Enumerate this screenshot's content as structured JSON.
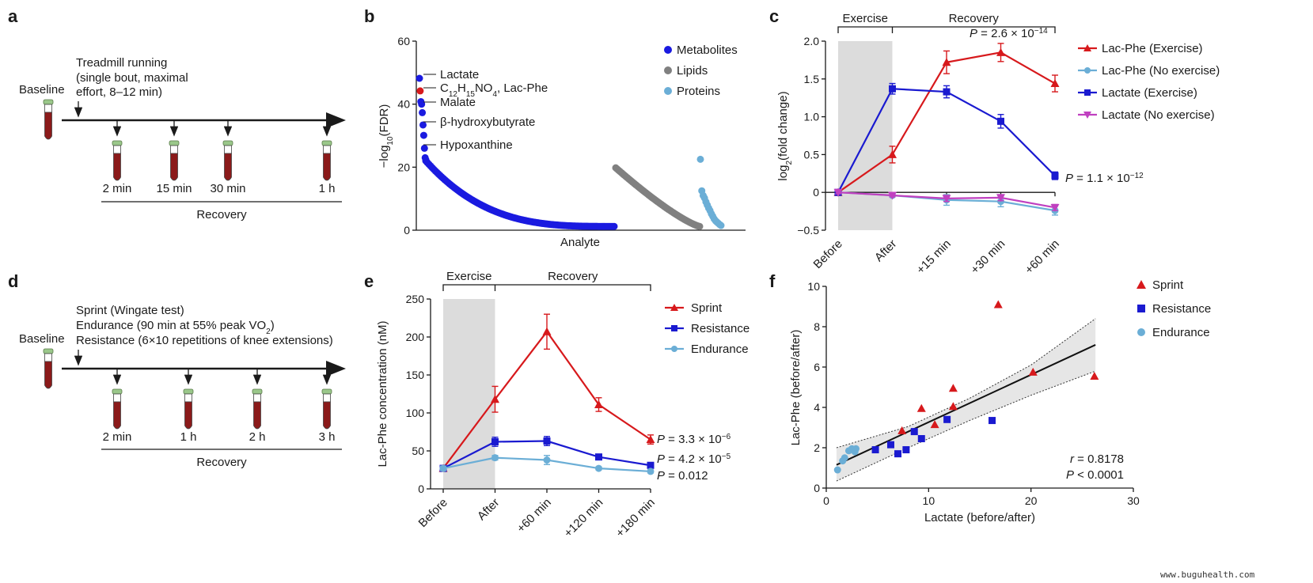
{
  "colors": {
    "red": "#d7191c",
    "blue": "#1a1ad0",
    "lightblue": "#6baed6",
    "magenta": "#c040c0",
    "grey": "#808080",
    "metab": "#1a1ae0",
    "shade": "#dcdcdc",
    "tube_cap": "#9ac78a",
    "tube_body": "#8b1a1a"
  },
  "panel_a": {
    "label": "a",
    "baseline": "Baseline",
    "event": [
      "Treadmill running",
      "(single bout, maximal",
      "effort, 8–12 min)"
    ],
    "timepoints": [
      "2 min",
      "15 min",
      "30 min",
      "1 h"
    ],
    "recovery": "Recovery"
  },
  "panel_d": {
    "label": "d",
    "baseline": "Baseline",
    "events": [
      "Sprint (Wingate test)",
      "Endurance (90 min at 55% peak VO",
      "2",
      ")",
      "Resistance (6×10 repetitions of knee extensions)"
    ],
    "timepoints": [
      "2 min",
      "1 h",
      "2 h",
      "3 h"
    ],
    "recovery": "Recovery"
  },
  "chart_data": [
    {
      "panel": "b",
      "type": "scatter",
      "ylabel_parts": [
        "−log",
        "10",
        "(FDR)"
      ],
      "xlabel": "Analyte",
      "ylim": [
        0,
        60
      ],
      "yticks": [
        0,
        20,
        40,
        60
      ],
      "legend": [
        {
          "name": "Metabolites",
          "color": "#1a1ae0"
        },
        {
          "name": "Lipids",
          "color": "#808080"
        },
        {
          "name": "Proteins",
          "color": "#6baed6"
        }
      ],
      "series": [
        {
          "name": "Metabolites",
          "top_values": [
            48.2,
            44.2,
            40.8,
            40.0,
            37.3,
            33.4,
            30.1,
            26.0,
            23.0,
            22.3
          ],
          "tail_start": 22,
          "tail_end": 1.2,
          "tail_count": 120
        },
        {
          "name": "Lipids",
          "tail_start": 19.8,
          "tail_end": 1.2,
          "tail_count": 60
        },
        {
          "name": "Proteins",
          "values": [
            22.5,
            12.5,
            11.0,
            10.2,
            9.0,
            8.0,
            7.0,
            6.2,
            5.2,
            4.4,
            3.6,
            3.0,
            2.6,
            2.2,
            1.8,
            1.5
          ]
        }
      ],
      "annotations": [
        {
          "text": "Lactate",
          "y": 48.2
        },
        {
          "text": "Lac-Phe",
          "y": 44.2,
          "formula": [
            "C",
            "12",
            "H",
            "15",
            "NO",
            "4"
          ]
        },
        {
          "text": "Malate",
          "y": 40.0
        },
        {
          "text": "β-hydroxybutyrate",
          "y": 33.4
        },
        {
          "text": "Hypoxanthine",
          "y": 26.0
        }
      ]
    },
    {
      "panel": "c",
      "type": "line",
      "categories": [
        "Before",
        "After",
        "+15 min",
        "+30 min",
        "+60 min"
      ],
      "ylabel_parts": [
        "log",
        "2",
        "(fold change)"
      ],
      "ylim": [
        -0.5,
        2.0
      ],
      "yticks": [
        -0.5,
        0,
        0.5,
        1.0,
        1.5,
        2.0
      ],
      "ytick_labels": [
        "−0.5",
        "0",
        "0.5",
        "1.0",
        "1.5",
        "2.0"
      ],
      "shade_label": "Exercise",
      "recovery_label": "Recovery",
      "series": [
        {
          "name": "Lac-Phe (Exercise)",
          "color": "#d7191c",
          "marker": "triangle",
          "values": [
            0,
            0.5,
            1.72,
            1.85,
            1.44
          ],
          "err": [
            0.02,
            0.11,
            0.15,
            0.12,
            0.11
          ]
        },
        {
          "name": "Lac-Phe (No exercise)",
          "color": "#6baed6",
          "marker": "circle",
          "values": [
            0,
            -0.04,
            -0.1,
            -0.12,
            -0.24
          ],
          "err": [
            0.02,
            0.02,
            0.07,
            0.07,
            0.06
          ]
        },
        {
          "name": "Lactate (Exercise)",
          "color": "#1a1ad0",
          "marker": "square",
          "values": [
            0,
            1.37,
            1.33,
            0.94,
            0.22
          ],
          "err": [
            0.02,
            0.07,
            0.08,
            0.09,
            0.05
          ]
        },
        {
          "name": "Lactate (No exercise)",
          "color": "#c040c0",
          "marker": "triangle-down",
          "values": [
            0,
            -0.04,
            -0.08,
            -0.07,
            -0.2
          ],
          "err": [
            0.02,
            0.02,
            0.04,
            0.04,
            0.04
          ]
        }
      ],
      "pvalue_top": [
        "P",
        " = 2.6 × 10",
        "−14"
      ],
      "pvalue_right": [
        "P",
        " = 1.1 × 10",
        "−12"
      ]
    },
    {
      "panel": "e",
      "type": "line",
      "categories": [
        "Before",
        "After",
        "+60 min",
        "+120 min",
        "+180 min"
      ],
      "ylabel": "Lac-Phe concentration (nM)",
      "ylim": [
        0,
        250
      ],
      "yticks": [
        0,
        50,
        100,
        150,
        200,
        250
      ],
      "shade_label": "Exercise",
      "recovery_label": "Recovery",
      "series": [
        {
          "name": "Sprint",
          "color": "#d7191c",
          "marker": "triangle",
          "values": [
            27,
            118,
            207,
            111,
            65
          ],
          "err": [
            3,
            17,
            23,
            9,
            6
          ]
        },
        {
          "name": "Resistance",
          "color": "#1a1ad0",
          "marker": "square",
          "values": [
            27,
            62,
            63,
            42,
            31
          ],
          "err": [
            3,
            6,
            6,
            3,
            3
          ]
        },
        {
          "name": "Endurance",
          "color": "#6baed6",
          "marker": "circle",
          "values": [
            27,
            41,
            38,
            27,
            23
          ],
          "err": [
            3,
            3,
            6,
            2,
            2
          ]
        }
      ],
      "pvalues": [
        {
          "series": "Sprint",
          "parts": [
            "P",
            " = 3.3 × 10",
            "−6"
          ]
        },
        {
          "series": "Resistance",
          "parts": [
            "P",
            " = 4.2 × 10",
            "−5"
          ]
        },
        {
          "series": "Endurance",
          "parts": [
            "P",
            " = 0.012",
            ""
          ]
        }
      ]
    },
    {
      "panel": "f",
      "type": "scatter",
      "xlabel": "Lactate (before/after)",
      "ylabel": "Lac-Phe (before/after)",
      "xlim": [
        0,
        30
      ],
      "ylim": [
        0,
        10
      ],
      "xticks": [
        0,
        10,
        20,
        30
      ],
      "yticks": [
        0,
        2,
        4,
        6,
        8,
        10
      ],
      "series": [
        {
          "name": "Sprint",
          "color": "#d7191c",
          "marker": "triangle",
          "points": [
            [
              7.4,
              2.85
            ],
            [
              9.3,
              3.95
            ],
            [
              10.6,
              3.15
            ],
            [
              12.4,
              4.05
            ],
            [
              12.4,
              4.95
            ],
            [
              16.8,
              9.1
            ],
            [
              20.2,
              5.75
            ],
            [
              26.2,
              5.55
            ]
          ]
        },
        {
          "name": "Resistance",
          "color": "#1a1ad0",
          "marker": "square",
          "points": [
            [
              4.8,
              1.9
            ],
            [
              6.3,
              2.15
            ],
            [
              7.0,
              1.7
            ],
            [
              7.8,
              1.9
            ],
            [
              8.6,
              2.8
            ],
            [
              9.3,
              2.45
            ],
            [
              11.8,
              3.4
            ],
            [
              16.2,
              3.35
            ]
          ]
        },
        {
          "name": "Endurance",
          "color": "#6baed6",
          "marker": "circle",
          "points": [
            [
              1.1,
              0.9
            ],
            [
              1.6,
              1.35
            ],
            [
              1.8,
              1.5
            ],
            [
              2.2,
              1.85
            ],
            [
              2.5,
              1.95
            ],
            [
              2.8,
              1.8
            ],
            [
              2.9,
              1.95
            ]
          ]
        }
      ],
      "fit": {
        "x": [
          1.0,
          26.3
        ],
        "y": [
          1.15,
          7.1
        ]
      },
      "ci_upper": [
        [
          1.0,
          2.0
        ],
        [
          8,
          3.05
        ],
        [
          14,
          4.45
        ],
        [
          20,
          6.1
        ],
        [
          26.3,
          8.4
        ]
      ],
      "ci_lower": [
        [
          1.0,
          0.35
        ],
        [
          8,
          2.0
        ],
        [
          14,
          3.35
        ],
        [
          20,
          4.6
        ],
        [
          26.3,
          5.8
        ]
      ],
      "r_text": [
        "r",
        " = 0.8178"
      ],
      "p_text": [
        "P",
        " < 0.0001"
      ]
    }
  ],
  "watermark": "www.buguhealth.com"
}
